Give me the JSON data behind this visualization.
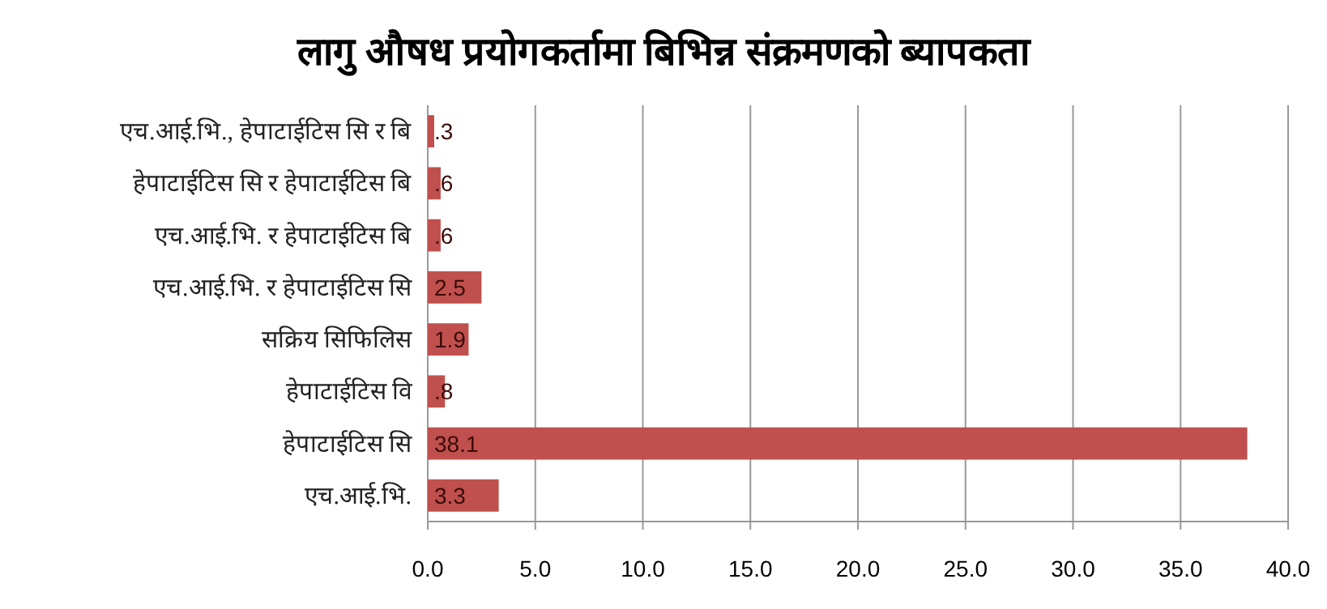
{
  "chart_data": {
    "type": "bar",
    "orientation": "horizontal",
    "title": "लागु औषध प्रयोगकर्तामा बिभिन्न संक्रमणको ब्यापकता",
    "categories": [
      "एच.आई.भि., हेपाटाईटिस सि र बि",
      "हेपाटाईटिस सि र हेपाटाईटिस बि",
      "एच.आई.भि. र हेपाटाईटिस बि",
      "एच.आई.भि. र हेपाटाईटिस सि",
      "सक्रिय सिफिलिस",
      "हेपाटाईटिस वि",
      "हेपाटाईटिस सि",
      "एच.आई.भि."
    ],
    "values": [
      0.3,
      0.6,
      0.6,
      2.5,
      1.9,
      0.8,
      38.1,
      3.3
    ],
    "value_labels": [
      ".3",
      ".6",
      ".6",
      "2.5",
      "1.9",
      ".8",
      "38.1",
      "3.3"
    ],
    "color": "#c0504d",
    "xlim": [
      0,
      40
    ],
    "xticks": [
      {
        "value": 0,
        "label": "0.0"
      },
      {
        "value": 5,
        "label": "5.0"
      },
      {
        "value": 10,
        "label": "10.0"
      },
      {
        "value": 15,
        "label": "15.0"
      },
      {
        "value": 20,
        "label": "20.0"
      },
      {
        "value": 25,
        "label": "25.0"
      },
      {
        "value": 30,
        "label": "30.0"
      },
      {
        "value": 35,
        "label": "35.0"
      },
      {
        "value": 40,
        "label": "40.0"
      }
    ],
    "grid": "x"
  }
}
